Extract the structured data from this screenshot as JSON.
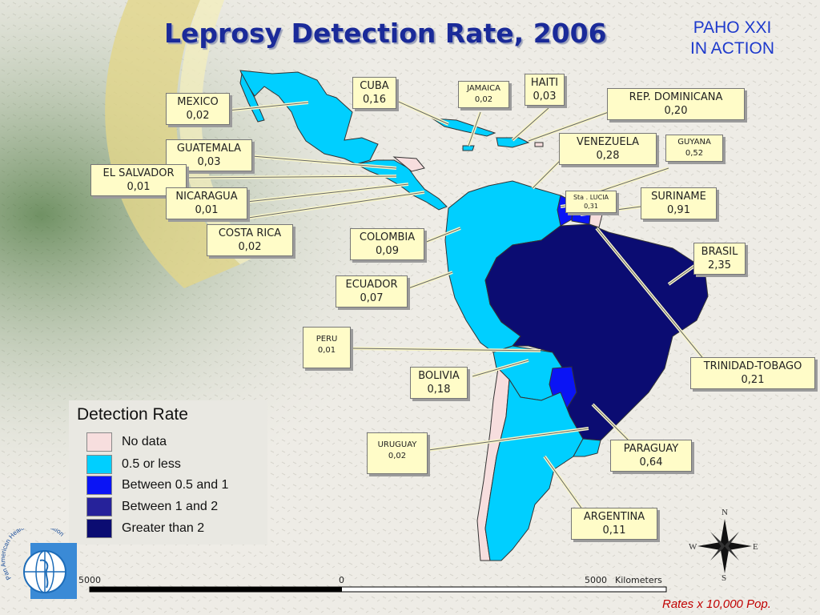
{
  "title": "Leprosy Detection Rate, 2006",
  "badge": {
    "line1": "PAHO XXI",
    "line2": "IN ACTION"
  },
  "callouts": {
    "mexico": {
      "name": "MEXICO",
      "rate": "0,02"
    },
    "cuba": {
      "name": "CUBA",
      "rate": "0,16"
    },
    "jamaica": {
      "name": "JAMAICA",
      "rate": "0,02"
    },
    "haiti": {
      "name": "HAITI",
      "rate": "0,03"
    },
    "rep_dominicana": {
      "name": "REP. DOMINICANA",
      "rate": "0,20"
    },
    "guatemala": {
      "name": "GUATEMALA",
      "rate": "0,03"
    },
    "el_salvador": {
      "name": "EL SALVADOR",
      "rate": "0,01"
    },
    "nicaragua": {
      "name": "NICARAGUA",
      "rate": "0,01"
    },
    "costa_rica": {
      "name": "COSTA RICA",
      "rate": "0,02"
    },
    "venezuela": {
      "name": "VENEZUELA",
      "rate": "0,28"
    },
    "guyana": {
      "name": "GUYANA",
      "rate": "0,52"
    },
    "sta_lucia": {
      "name": "Sta . LUCIA",
      "rate": "0,31"
    },
    "suriname": {
      "name": "SURINAME",
      "rate": "0,91"
    },
    "colombia": {
      "name": "COLOMBIA",
      "rate": "0,09"
    },
    "ecuador": {
      "name": "ECUADOR",
      "rate": "0,07"
    },
    "brasil": {
      "name": "BRASIL",
      "rate": "2,35"
    },
    "peru": {
      "name": "PERU",
      "rate": "0,01"
    },
    "bolivia": {
      "name": "BOLIVIA",
      "rate": "0,18"
    },
    "trinidad_tobago": {
      "name": "TRINIDAD-TOBAGO",
      "rate": "0,21"
    },
    "uruguay": {
      "name": "URUGUAY",
      "rate": "0,02"
    },
    "paraguay": {
      "name": "PARAGUAY",
      "rate": "0,64"
    },
    "argentina": {
      "name": "ARGENTINA",
      "rate": "0,11"
    }
  },
  "legend": {
    "title": "Detection Rate",
    "items": [
      {
        "label": "No data",
        "color": "#f7dede"
      },
      {
        "label": "0.5 or less",
        "color": "#00cfff"
      },
      {
        "label": "Between 0.5 and 1",
        "color": "#0a14f5"
      },
      {
        "label": "Between 1 and 2",
        "color": "#26229a"
      },
      {
        "label": "Greater than 2",
        "color": "#0b0c72"
      }
    ]
  },
  "scale": {
    "left": "5000",
    "mid": "0",
    "right": "5000",
    "unit": "Kilometers"
  },
  "compass": {
    "n": "N",
    "s": "S",
    "e": "E",
    "w": "W"
  },
  "footnote": "Rates x 10,000 Pop.",
  "logo_text": "Pan American Health Organization",
  "colors": {
    "title": "#1a2a99",
    "footnote": "#c00000",
    "callout_bg": "#fffcc8"
  }
}
